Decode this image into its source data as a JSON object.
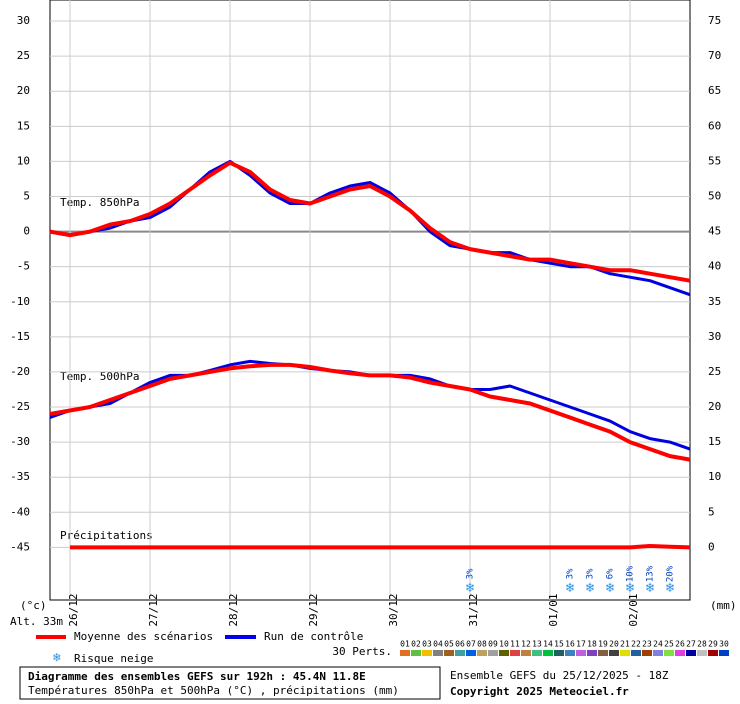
{
  "chart_data": {
    "type": "line",
    "title": "Diagramme des ensembles GEFS sur 192h : 45.4N 11.8E",
    "subtitle": "Températures 850hPa et 500hPa (°C) , précipitations (mm)",
    "run_info": "Ensemble GEFS du 25/12/2025 - 18Z",
    "copyright": "Copyright 2025 Meteociel.fr",
    "altitude": "Alt. 33m",
    "y_label": "(°c)",
    "y2_label": "(mm)",
    "annotations": [
      "Temp. 850hPa",
      "Temp. 500hPa",
      "Précipitations"
    ],
    "snow_legend": "Risque neige",
    "perts_label": "30 Perts.",
    "perts": [
      {
        "name": "01",
        "color": "#e07020"
      },
      {
        "name": "02",
        "color": "#60c040"
      },
      {
        "name": "03",
        "color": "#f0c000"
      },
      {
        "name": "04",
        "color": "#808080"
      },
      {
        "name": "05",
        "color": "#a06020"
      },
      {
        "name": "06",
        "color": "#40a0a0"
      },
      {
        "name": "07",
        "color": "#0060e0"
      },
      {
        "name": "08",
        "color": "#c0a060"
      },
      {
        "name": "09",
        "color": "#a0a0a0"
      },
      {
        "name": "10",
        "color": "#606000"
      },
      {
        "name": "11",
        "color": "#e04040"
      },
      {
        "name": "12",
        "color": "#c08040"
      },
      {
        "name": "13",
        "color": "#40c080"
      },
      {
        "name": "14",
        "color": "#00c040"
      },
      {
        "name": "15",
        "color": "#206060"
      },
      {
        "name": "16",
        "color": "#4080c0"
      },
      {
        "name": "17",
        "color": "#c060e0"
      },
      {
        "name": "18",
        "color": "#8040c0"
      },
      {
        "name": "19",
        "color": "#806040"
      },
      {
        "name": "20",
        "color": "#404040"
      },
      {
        "name": "21",
        "color": "#e0e000"
      },
      {
        "name": "22",
        "color": "#2060a0"
      },
      {
        "name": "23",
        "color": "#a04000"
      },
      {
        "name": "24",
        "color": "#8080e0"
      },
      {
        "name": "25",
        "color": "#80e040"
      },
      {
        "name": "26",
        "color": "#e040e0"
      },
      {
        "name": "27",
        "color": "#0000a0"
      },
      {
        "name": "28",
        "color": "#c0c0c0"
      },
      {
        "name": "29",
        "color": "#a00000"
      },
      {
        "name": "30",
        "color": "#0040c0"
      }
    ],
    "x": [
      0,
      6,
      12,
      18,
      24,
      30,
      36,
      42,
      48,
      54,
      60,
      66,
      72,
      78,
      84,
      90,
      96,
      102,
      108,
      114,
      120,
      126,
      132,
      138,
      144,
      150,
      156,
      162,
      168,
      174,
      180,
      186,
      192
    ],
    "xlim": [
      0,
      192
    ],
    "xticks": [
      {
        "value": 6,
        "label": "26/12"
      },
      {
        "value": 30,
        "label": "27/12"
      },
      {
        "value": 54,
        "label": "28/12"
      },
      {
        "value": 78,
        "label": "29/12"
      },
      {
        "value": 102,
        "label": "30/12"
      },
      {
        "value": 126,
        "label": "31/12"
      },
      {
        "value": 150,
        "label": "01/01"
      },
      {
        "value": 174,
        "label": "02/01"
      }
    ],
    "ylim": [
      -52.5,
      33
    ],
    "yticks": [
      -45,
      -40,
      -35,
      -30,
      -25,
      -20,
      -15,
      -10,
      -5,
      0,
      5,
      10,
      15,
      20,
      25,
      30
    ],
    "y2lim": [
      -7.5,
      78
    ],
    "y2ticks": [
      0,
      5,
      10,
      15,
      20,
      25,
      30,
      35,
      40,
      45,
      50,
      55,
      60,
      65,
      70,
      75
    ],
    "grid": true,
    "series": [
      {
        "name": "Moyenne des scénarios",
        "color": "#ff0000",
        "values": [
          0,
          -0.5,
          0,
          1,
          1.5,
          2.5,
          4,
          6,
          8,
          9.8,
          8.5,
          6,
          4.5,
          4,
          5,
          6,
          6.5,
          5,
          3,
          0.5,
          -1.5,
          -2.5,
          -3,
          -3.5,
          -4,
          -4,
          -4.5,
          -5,
          -5.5,
          -5.5,
          -6,
          -6.5,
          -7
        ]
      },
      {
        "name": "Run de contrôle",
        "color": "#0000e0",
        "values": [
          0,
          -0.5,
          0,
          0.5,
          1.5,
          2,
          3.5,
          6,
          8.5,
          10,
          8,
          5.5,
          4,
          4,
          5.5,
          6.5,
          7,
          5.5,
          3,
          0,
          -2,
          -2.5,
          -3,
          -3,
          -4,
          -4.5,
          -5,
          -5,
          -6,
          -6.5,
          -7,
          -8,
          -9
        ]
      },
      {
        "values": [
          -26,
          -25.5,
          -25,
          -24,
          -23,
          -22,
          -21,
          -20.5,
          -20,
          -19.5,
          -19.2,
          -19,
          -19,
          -19.3,
          -19.8,
          -20.2,
          -20.5,
          -20.5,
          -20.8,
          -21.5,
          -22,
          -22.5,
          -23.5,
          -24,
          -24.5,
          -25.5,
          -26.5,
          -27.5,
          -28.5,
          -30,
          -31,
          -32,
          -32.5
        ],
        "color": "#ff0000"
      },
      {
        "values": [
          -26.5,
          -25.5,
          -25,
          -24.5,
          -23,
          -21.5,
          -20.5,
          -20.5,
          -19.8,
          -19,
          -18.5,
          -18.8,
          -19,
          -19.5,
          -19.8,
          -20,
          -20.5,
          -20.5,
          -20.5,
          -21,
          -22,
          -22.5,
          -22.5,
          -22,
          -23,
          -24,
          -25,
          -26,
          -27,
          -28.5,
          -29.5,
          -30,
          -31
        ],
        "color": "#0000e0"
      },
      {
        "axis": "y2",
        "values": [
          null,
          0,
          0,
          0,
          0,
          0,
          0,
          0,
          0,
          0,
          0,
          0,
          0,
          0,
          0,
          0,
          0,
          0,
          0,
          0,
          0,
          0,
          0,
          0,
          0,
          0,
          0,
          0,
          0,
          0,
          0.2,
          0.1,
          0
        ],
        "color": "#ff0000"
      }
    ],
    "snow_risk": {
      "x": [
        126,
        156,
        162,
        168,
        174,
        180,
        186
      ],
      "values": [
        3,
        3,
        3,
        6,
        10,
        13,
        20
      ],
      "value_labels": [
        "3%",
        "3%",
        "3%",
        "6%",
        "10%",
        "13%",
        "20%"
      ]
    }
  }
}
